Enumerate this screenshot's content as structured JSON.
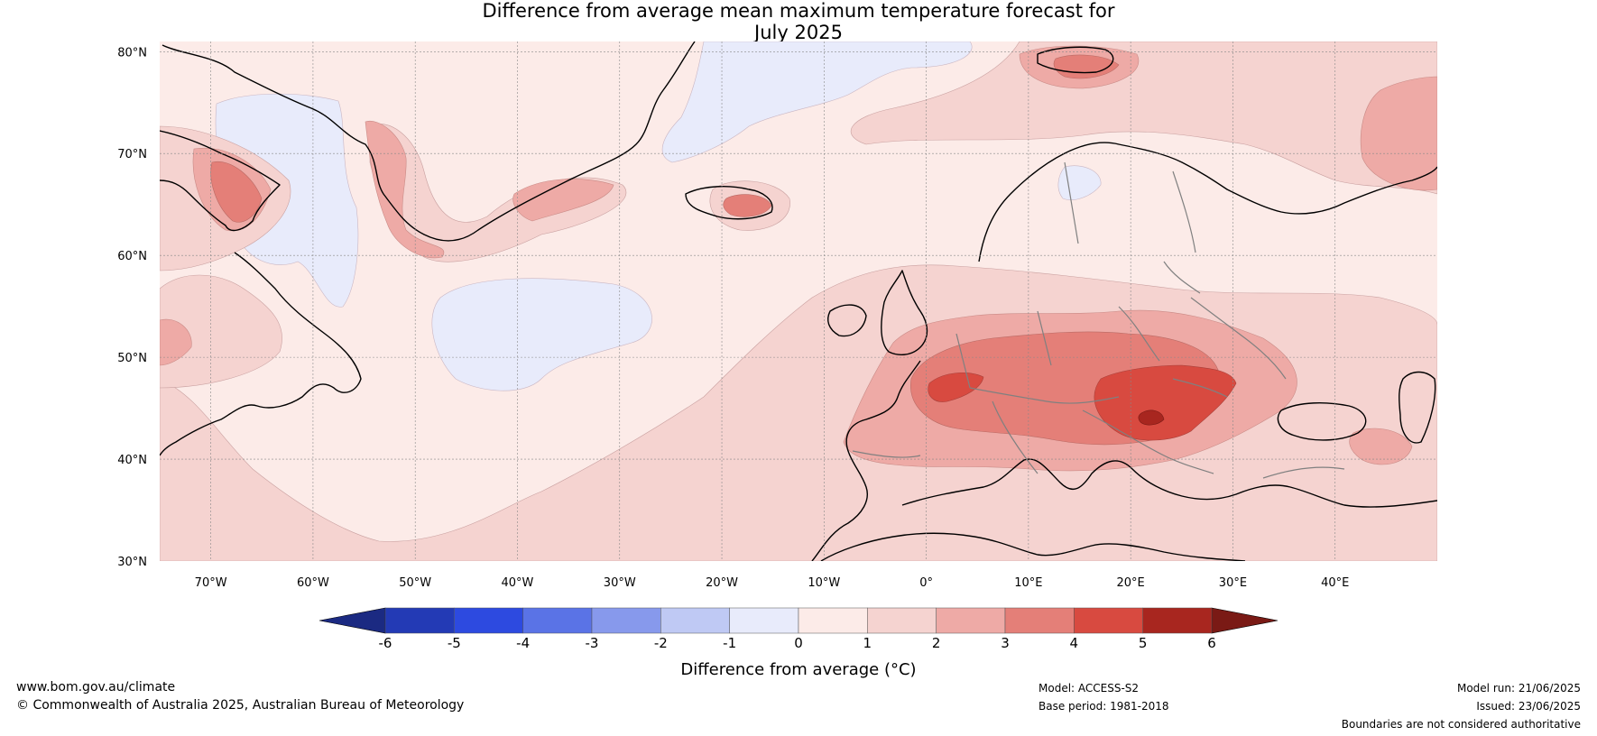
{
  "title": {
    "line1": "Difference from average mean maximum temperature forecast for",
    "line2": "July 2025"
  },
  "map": {
    "lon_range": [
      -75,
      50
    ],
    "lat_range": [
      30,
      81
    ],
    "lat_labels": [
      {
        "value": 80,
        "text": "80°N"
      },
      {
        "value": 70,
        "text": "70°N"
      },
      {
        "value": 60,
        "text": "60°N"
      },
      {
        "value": 50,
        "text": "50°N"
      },
      {
        "value": 40,
        "text": "40°N"
      },
      {
        "value": 30,
        "text": "30°N"
      }
    ],
    "lon_labels": [
      {
        "value": -70,
        "text": "70°W"
      },
      {
        "value": -60,
        "text": "60°W"
      },
      {
        "value": -50,
        "text": "50°W"
      },
      {
        "value": -40,
        "text": "40°W"
      },
      {
        "value": -30,
        "text": "30°W"
      },
      {
        "value": -20,
        "text": "20°W"
      },
      {
        "value": -10,
        "text": "10°W"
      },
      {
        "value": 0,
        "text": "0°"
      },
      {
        "value": 10,
        "text": "10°E"
      },
      {
        "value": 20,
        "text": "20°E"
      },
      {
        "value": 30,
        "text": "30°E"
      },
      {
        "value": 40,
        "text": "40°E"
      }
    ]
  },
  "colorbar": {
    "ticks": [
      "-6",
      "-5",
      "-4",
      "-3",
      "-2",
      "-1",
      "0",
      "1",
      "2",
      "3",
      "4",
      "5",
      "6"
    ],
    "colors": [
      "#233ab5",
      "#2d4ae0",
      "#5a73e6",
      "#8799ec",
      "#bfc9f4",
      "#e8ebfb",
      "#fcebe8",
      "#f5d3d0",
      "#eeaaa6",
      "#e47f78",
      "#d84a40",
      "#a8261f"
    ],
    "under_color": "#1b2a82",
    "over_color": "#7a1a15",
    "label": "Difference from average (°C)"
  },
  "footer": {
    "website": "www.bom.gov.au/climate",
    "copyright": "© Commonwealth of Australia 2025, Australian Bureau of Meteorology",
    "model": "Model: ACCESS-S2",
    "base_period": "Base period: 1981-2018",
    "model_run": "Model run: 21/06/2025",
    "issued": "Issued: 23/06/2025",
    "disclaimer": "Boundaries are not considered authoritative"
  }
}
